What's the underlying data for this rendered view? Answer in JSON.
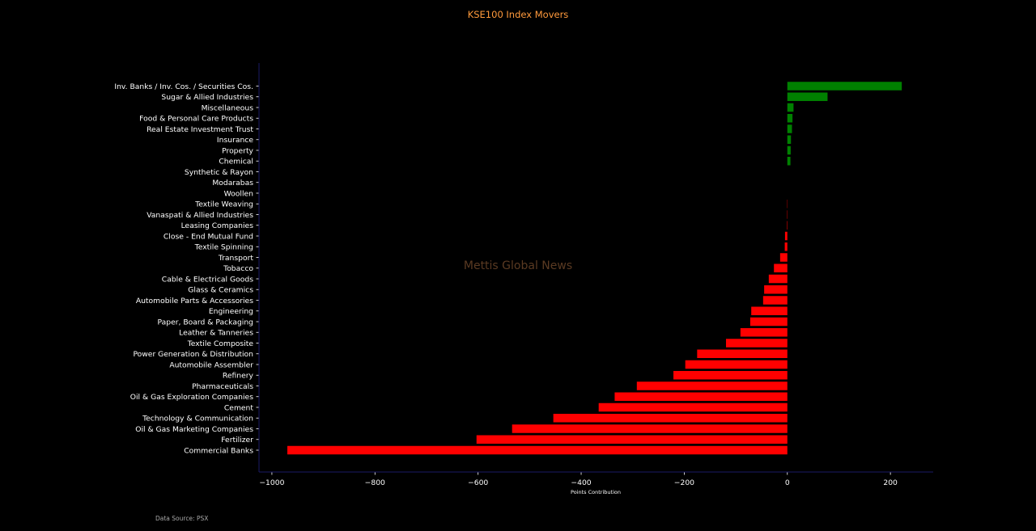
{
  "chart_data": {
    "type": "bar",
    "orientation": "horizontal",
    "title": "KSE100 Index Movers",
    "xlabel": "Points Contribution",
    "ylabel": "",
    "xlim": [
      -1025,
      283
    ],
    "xticks": [
      -1000,
      -800,
      -600,
      -400,
      -200,
      0,
      200
    ],
    "xtick_labels": [
      "−1000",
      "−800",
      "−600",
      "−400",
      "−200",
      "0",
      "200"
    ],
    "grid": false,
    "legend": "none",
    "categories": [
      "Inv. Banks / Inv. Cos. / Securities Cos.",
      "Sugar & Allied Industries",
      "Miscellaneous",
      "Food & Personal Care Products",
      "Real Estate Investment Trust",
      "Insurance",
      "Property",
      "Chemical",
      "Synthetic & Rayon",
      "Modarabas",
      "Woollen",
      "Textile Weaving",
      "Vanaspati & Allied Industries",
      "Leasing Companies",
      "Close - End Mutual Fund",
      "Textile Spinning",
      "Transport",
      "Tobacco",
      "Cable & Electrical Goods",
      "Glass & Ceramics",
      "Automobile Parts & Accessories",
      "Engineering",
      "Paper, Board & Packaging",
      "Leather & Tanneries",
      "Textile Composite",
      "Power Generation & Distribution",
      "Automobile Assembler",
      "Refinery",
      "Pharmaceuticals",
      "Oil & Gas Exploration Companies",
      "Cement",
      "Technology & Communication",
      "Oil & Gas Marketing Companies",
      "Fertilizer",
      "Commercial Banks"
    ],
    "values": [
      222,
      78,
      12,
      10,
      9,
      7,
      6.5,
      6,
      0,
      0,
      0,
      -0.5,
      -0.6,
      -0.8,
      -4.5,
      -5,
      -14,
      -26,
      -36,
      -45,
      -47,
      -70,
      -72,
      -91,
      -119,
      -175,
      -198,
      -221,
      -292,
      -335,
      -366,
      -454,
      -534,
      -603,
      -970
    ],
    "colors": {
      "positive": "#008000",
      "negative": "#ff0000"
    }
  },
  "watermark": "Mettis Global News",
  "source": "Data Source: PSX",
  "colors": {
    "background": "#000000",
    "title": "#ff9a3c",
    "watermark": "#5a3a22",
    "spine": "#1a1a66",
    "text": "#ffffff",
    "source": "#a9a9a9"
  }
}
